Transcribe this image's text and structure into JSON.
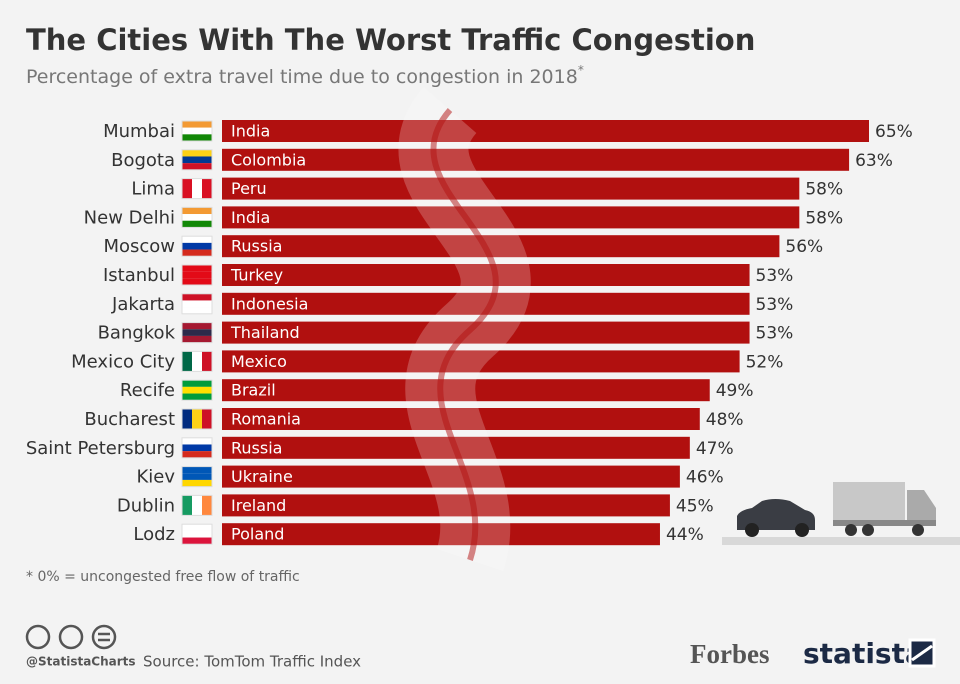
{
  "chart_data": {
    "type": "bar",
    "orientation": "horizontal",
    "title": "The Cities With The Worst Traffic Congestion",
    "subtitle": "Percentage of extra travel time due to congestion in 2018",
    "subtitle_marker": "*",
    "categories": [
      "Mumbai",
      "Bogota",
      "Lima",
      "New Delhi",
      "Moscow",
      "Istanbul",
      "Jakarta",
      "Bangkok",
      "Mexico City",
      "Recife",
      "Bucharest",
      "Saint Petersburg",
      "Kiev",
      "Dublin",
      "Lodz"
    ],
    "bar_labels": [
      "India",
      "Colombia",
      "Peru",
      "India",
      "Russia",
      "Turkey",
      "Indonesia",
      "Thailand",
      "Mexico",
      "Brazil",
      "Romania",
      "Russia",
      "Ukraine",
      "Ireland",
      "Poland"
    ],
    "values": [
      65,
      63,
      58,
      58,
      56,
      53,
      53,
      53,
      52,
      49,
      48,
      47,
      46,
      45,
      44
    ],
    "value_labels": [
      "65%",
      "63%",
      "58%",
      "58%",
      "56%",
      "53%",
      "53%",
      "53%",
      "52%",
      "49%",
      "48%",
      "47%",
      "46%",
      "45%",
      "44%"
    ],
    "color": "#b1100f",
    "footnote": "* 0% = uncongested free flow of traffic",
    "handle": "@StatistaCharts",
    "source": "Source: TomTom Traffic Index",
    "logos": [
      "Forbes",
      "statista"
    ]
  }
}
